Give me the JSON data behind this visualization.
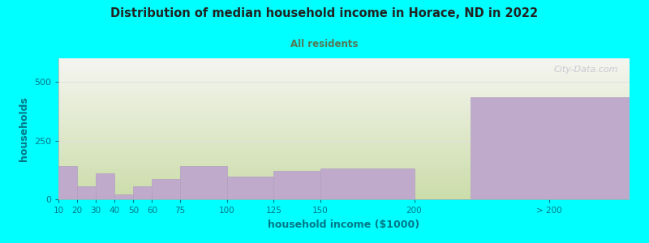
{
  "title": "Distribution of median household income in Horace, ND in 2022",
  "subtitle": "All residents",
  "xlabel": "household income ($1000)",
  "ylabel": "households",
  "background_color": "#00FFFF",
  "plot_bg_top": "#F5F5F0",
  "plot_bg_bottom": "#CCDDAA",
  "bar_color": "#C0AACC",
  "bar_edge_color": "#B0A0C0",
  "title_color": "#222222",
  "subtitle_color": "#557755",
  "axis_label_color": "#007788",
  "tick_color": "#007788",
  "watermark": "City-Data.com",
  "values": [
    0,
    140,
    55,
    110,
    20,
    55,
    85,
    140,
    95,
    120,
    130,
    0,
    435
  ],
  "bar_lefts": [
    10,
    10,
    20,
    30,
    40,
    50,
    60,
    75,
    100,
    125,
    150,
    200,
    230
  ],
  "bar_widths": [
    0,
    10,
    10,
    10,
    10,
    10,
    15,
    25,
    25,
    25,
    50,
    50,
    85
  ],
  "ylim": [
    0,
    600
  ],
  "yticks": [
    0,
    250,
    500
  ],
  "xtick_positions": [
    10,
    20,
    30,
    40,
    50,
    60,
    75,
    100,
    125,
    150,
    200,
    272
  ],
  "xtick_labels": [
    "10",
    "20",
    "30",
    "40",
    "50",
    "60",
    "75",
    "100",
    "125",
    "150",
    "200",
    "> 200"
  ],
  "x_min": 10,
  "x_max": 315
}
